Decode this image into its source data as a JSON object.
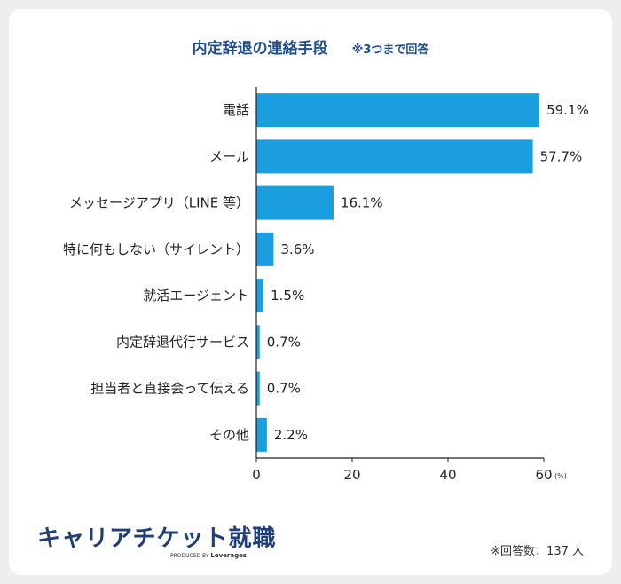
{
  "chart_data": {
    "type": "bar",
    "orientation": "horizontal",
    "title": "内定辞退の連絡手段",
    "subtitle": "※3つまで回答",
    "categories": [
      "電話",
      "メール",
      "メッセージアプリ（LINE 等）",
      "特に何もしない（サイレント）",
      "就活エージェント",
      "内定辞退代行サービス",
      "担当者と直接会って伝える",
      "その他"
    ],
    "values": [
      59.1,
      57.7,
      16.1,
      3.6,
      1.5,
      0.7,
      0.7,
      2.2
    ],
    "value_labels": [
      "59.1%",
      "57.7%",
      "16.1%",
      "3.6%",
      "1.5%",
      "0.7%",
      "0.7%",
      "2.2%"
    ],
    "xlim": [
      0,
      60
    ],
    "xticks": [
      "0",
      "20",
      "40",
      "60"
    ],
    "unit_label": "(%)",
    "bar_color": "#1a9ee0"
  },
  "brand": {
    "name": "キャリアチケット就職",
    "produced_by": "PRODUCED BY",
    "company": "Leverages"
  },
  "footnote": "※回答数：137 人",
  "colors": {
    "title": "#1f4f8c",
    "bar": "#1a9ee0",
    "brand": "#1f3f7a"
  }
}
